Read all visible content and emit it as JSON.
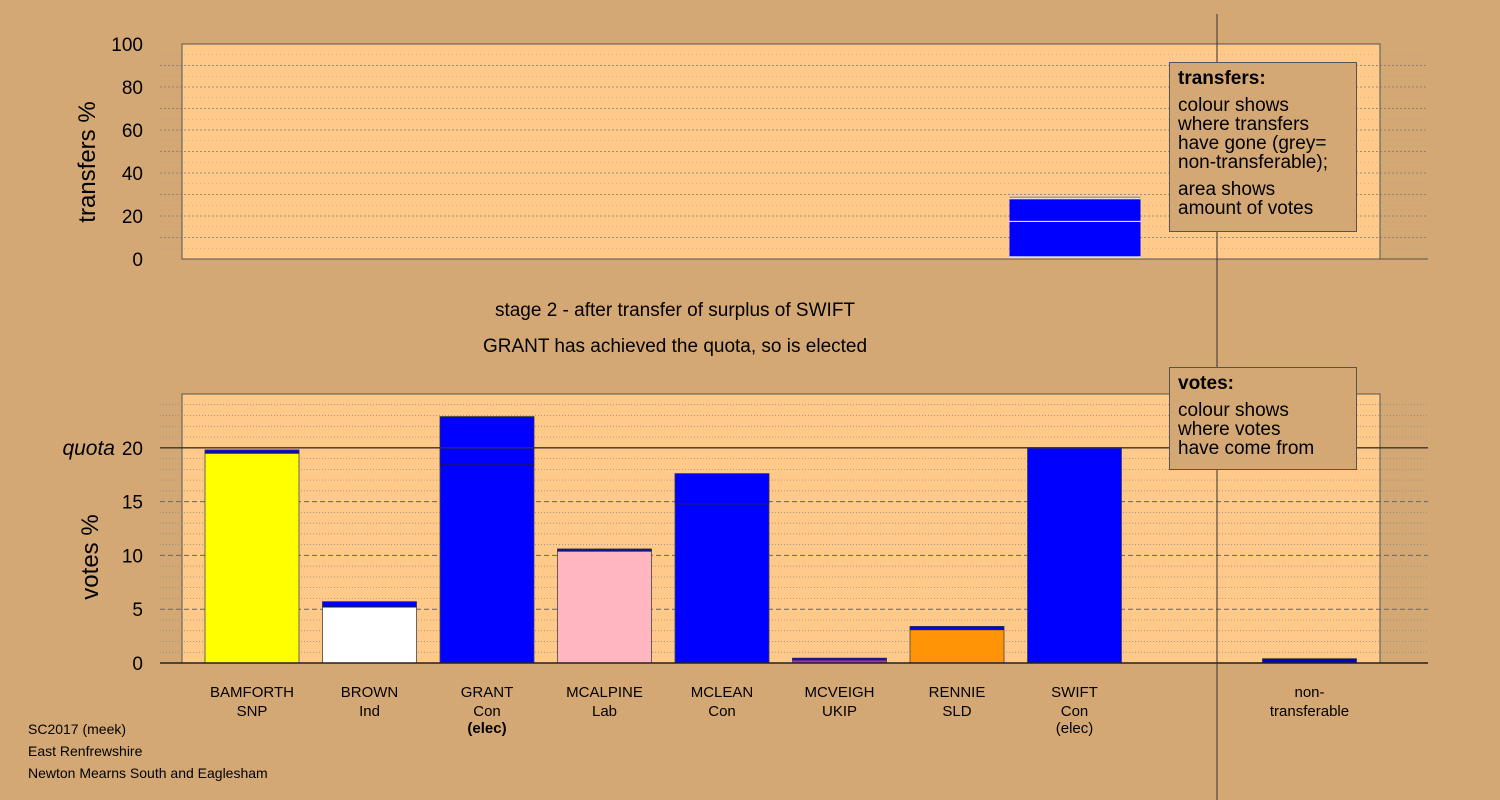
{
  "heading": {
    "stage": "stage 2 - after transfer of surplus of SWIFT",
    "elected": "GRANT has achieved the quota, so is elected"
  },
  "legend_transfers": {
    "title": "transfers:",
    "lines": [
      "colour shows",
      "where transfers",
      "have gone (grey=",
      "non-transferable);"
    ],
    "lines2": [
      "area shows",
      "amount of votes"
    ]
  },
  "legend_votes": {
    "title": "votes:",
    "lines": [
      "colour shows",
      "where votes",
      "have come from"
    ]
  },
  "footer": {
    "line1": "SC2017 (meek)",
    "line2": "East Renfrewshire",
    "line3": "Newton Mearns South and Eaglesham"
  },
  "colors": {
    "background": "#d4a874",
    "plot_bg": "#ffc98a",
    "SNP": "#ffff00",
    "Ind": "#ffffff",
    "Con": "#0000ff",
    "Lab": "#ffb6c1",
    "UKIP": "#9932cc",
    "SLD": "#ff9406",
    "non_transferable": "#0000cc"
  },
  "chart_data": [
    {
      "type": "bar",
      "ylabel": "transfers %",
      "ylim": [
        0,
        100
      ],
      "yticks": [
        0,
        20,
        40,
        60,
        80,
        100
      ],
      "grid": true,
      "bars": [
        {
          "candidate": "SWIFT",
          "segments": [
            {
              "color": "#0000ff",
              "from": 1.0,
              "to": 17.5
            },
            {
              "color": "#0000ff",
              "from": 17.5,
              "to": 28.0
            },
            {
              "color": "#999999",
              "from": 28.0,
              "to": 29.0
            }
          ]
        }
      ]
    },
    {
      "type": "bar",
      "ylabel": "votes %",
      "ylim": [
        0,
        25
      ],
      "yticks": [
        0,
        5,
        10,
        15,
        20
      ],
      "quota": 20,
      "quota_label": "quota",
      "grid": true,
      "categories": [
        {
          "name": "BAMFORTH",
          "party": "SNP",
          "note": ""
        },
        {
          "name": "BROWN",
          "party": "Ind",
          "note": ""
        },
        {
          "name": "GRANT",
          "party": "Con",
          "note": "(elec)"
        },
        {
          "name": "MCALPINE",
          "party": "Lab",
          "note": ""
        },
        {
          "name": "MCLEAN",
          "party": "Con",
          "note": ""
        },
        {
          "name": "MCVEIGH",
          "party": "UKIP",
          "note": ""
        },
        {
          "name": "RENNIE",
          "party": "SLD",
          "note": ""
        },
        {
          "name": "SWIFT",
          "party": "Con",
          "note": "(elec)"
        },
        {
          "name": "",
          "party": "",
          "note": ""
        },
        {
          "name": "non-",
          "party": "transferable",
          "note": ""
        }
      ],
      "bars": [
        {
          "candidate": "BAMFORTH",
          "first": 19.5,
          "total": 19.8,
          "color": "#ffff00",
          "transfer_color": "#0000ff"
        },
        {
          "candidate": "BROWN",
          "first": 5.2,
          "total": 5.7,
          "color": "#ffffff",
          "transfer_color": "#0000ff"
        },
        {
          "candidate": "GRANT",
          "first": 18.4,
          "total": 22.9,
          "color": "#0000ff",
          "transfer_color": "#0000ff"
        },
        {
          "candidate": "MCALPINE",
          "first": 10.4,
          "total": 10.6,
          "color": "#ffb6c1",
          "transfer_color": "#0000ff"
        },
        {
          "candidate": "MCLEAN",
          "first": 14.8,
          "total": 17.6,
          "color": "#0000ff",
          "transfer_color": "#0000ff"
        },
        {
          "candidate": "MCVEIGH",
          "first": 0.3,
          "total": 0.45,
          "color": "#9932cc",
          "transfer_color": "#0000ff"
        },
        {
          "candidate": "RENNIE",
          "first": 3.1,
          "total": 3.4,
          "color": "#ff9406",
          "transfer_color": "#0000ff"
        },
        {
          "candidate": "SWIFT",
          "first": 20.0,
          "total": 20.0,
          "color": "#0000ff",
          "transfer_color": "#0000ff"
        },
        {
          "candidate": "",
          "first": 0,
          "total": 0,
          "color": "#0000ff",
          "transfer_color": "#0000ff"
        },
        {
          "candidate": "non-transferable",
          "first": 0,
          "total": 0.4,
          "color": "#0000cc",
          "transfer_color": "#0000cc"
        }
      ]
    }
  ]
}
